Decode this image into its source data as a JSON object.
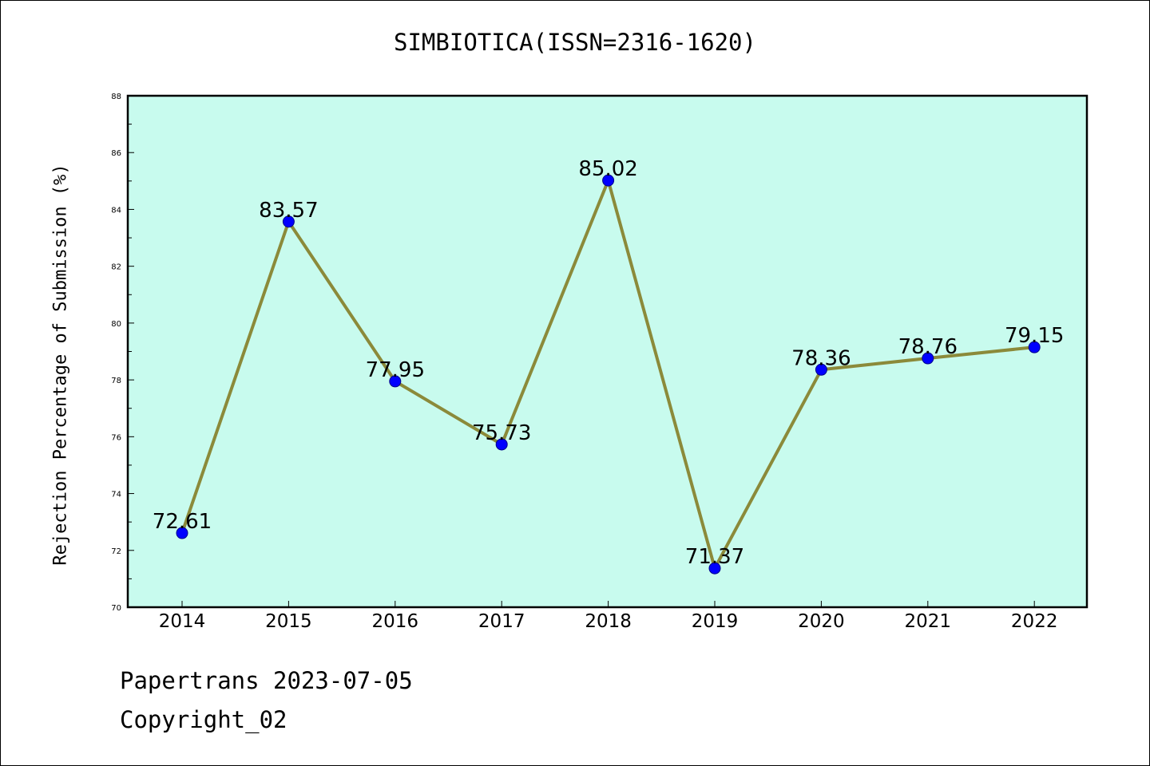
{
  "page": {
    "footer_line1": "Papertrans 2023-07-05",
    "footer_line2": "Copyright_02"
  },
  "chart_data": {
    "type": "line",
    "title": "SIMBIOTICA(ISSN=2316-1620)",
    "xlabel": "",
    "ylabel": "Rejection Percentage of Submission (%)",
    "categories": [
      "2014",
      "2015",
      "2016",
      "2017",
      "2018",
      "2019",
      "2020",
      "2021",
      "2022"
    ],
    "series": [
      {
        "values": [
          72.61,
          83.57,
          77.95,
          75.73,
          85.02,
          71.37,
          78.36,
          78.76,
          79.15
        ],
        "labels": [
          "72.61",
          "83.57",
          "77.95",
          "75.73",
          "85.02",
          "71.37",
          "78.36",
          "78.76",
          "79.15"
        ]
      }
    ],
    "ylim": [
      70,
      88
    ],
    "yticks": [
      70,
      72,
      74,
      76,
      78,
      80,
      82,
      84,
      86,
      88
    ],
    "grid": false,
    "colors": {
      "plot_background": "#c8fbee",
      "line": "#8b8a3a",
      "marker": "#0000ff"
    }
  }
}
